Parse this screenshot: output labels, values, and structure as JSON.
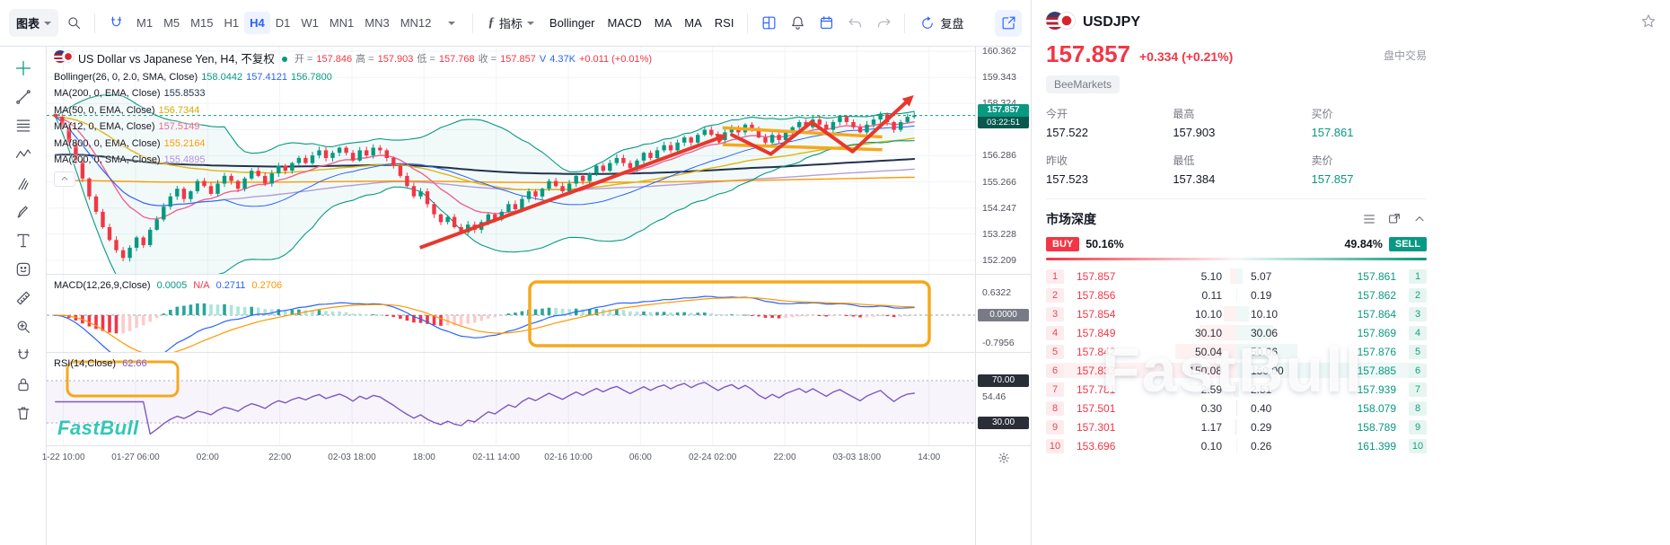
{
  "toolbar": {
    "chart_menu_label": "图表",
    "timeframes": [
      "M1",
      "M5",
      "M15",
      "H1",
      "H4",
      "D1",
      "W1",
      "MN1",
      "MN3",
      "MN12"
    ],
    "active_timeframe": "H4",
    "indicators_label": "指标",
    "quick_indicators": [
      "Bollinger",
      "MACD",
      "MA",
      "MA",
      "RSI"
    ],
    "replay_label": "复盘"
  },
  "chart": {
    "title": "US Dollar vs Japanese Yen, H4, 不复权",
    "ohlc": {
      "open_label": "开 =",
      "open": "157.846",
      "high_label": "高 =",
      "high": "157.903",
      "low_label": "低 =",
      "low": "157.768",
      "close_label": "收 =",
      "close": "157.857",
      "volume_label": "V",
      "volume": "4.37K",
      "change": "+0.011 (+0.01%)"
    },
    "legends": [
      {
        "name": "Bollinger(26, 0, 2.0, SMA, Close)",
        "v1": "158.0442",
        "v2": "157.4121",
        "v3": "156.7800"
      },
      {
        "name": "MA(200, 0, EMA, Close)",
        "v1": "155.8533"
      },
      {
        "name": "MA(50, 0, EMA, Close)",
        "v1": "156.7344"
      },
      {
        "name": "MA(12, 0, EMA, Close)",
        "v1": "157.5149"
      },
      {
        "name": "MA(800, 0, EMA, Close)",
        "v1": "155.2164"
      },
      {
        "name": "MA(200, 0, SMA, Close)",
        "v1": "155.4895"
      }
    ],
    "price_axis_labels": [
      "160.362",
      "159.343",
      "158.324",
      "156.286",
      "155.266",
      "154.247",
      "153.228",
      "152.209"
    ],
    "last_price": "157.857",
    "countdown": "03:22:51",
    "macd_legend": {
      "name": "MACD(12,26,9,Close)",
      "v1": "0.0005",
      "v2": "N/A",
      "v3": "0.2711",
      "v4": "0.2706"
    },
    "macd_axis": {
      "top": "0.6322",
      "zero": "0.0000",
      "bottom": "-0.7956"
    },
    "rsi_legend": {
      "name": "RSI(14,Close)",
      "value": "62.66"
    },
    "rsi_axis": {
      "top": "70.00",
      "mid": "54.46",
      "bottom": "30.00"
    },
    "time_axis": [
      "1-22 10:00",
      "01-27 06:00",
      "02:00",
      "22:00",
      "02-03 18:00",
      "18:00",
      "02-11 14:00",
      "02-16 10:00",
      "06:00",
      "02-24 02:00",
      "22:00",
      "03-03 18:00",
      "14:00"
    ],
    "watermark_small": "FastBull"
  },
  "chart_data": {
    "type": "candlestick",
    "symbol": "USDJPY",
    "interval": "H4",
    "price_domain": [
      151.68,
      160.54
    ],
    "macd_domain": [
      -1.063,
      1.138
    ],
    "rsi_domain": [
      7.9,
      96.4
    ],
    "overlays": [
      "BOLL(26,2)",
      "EMA12",
      "EMA50",
      "EMA200",
      "EMA800",
      "SMA200"
    ],
    "close": [
      157.8,
      157.4,
      156.8,
      156.1,
      155.4,
      154.7,
      154.1,
      153.5,
      153.0,
      152.6,
      152.3,
      152.7,
      153.1,
      152.8,
      153.4,
      153.8,
      154.3,
      154.7,
      155.0,
      154.6,
      154.9,
      155.3,
      155.1,
      154.8,
      155.2,
      155.5,
      155.3,
      155.0,
      155.4,
      155.7,
      155.5,
      155.2,
      155.6,
      155.9,
      155.7,
      156.0,
      156.2,
      156.0,
      156.3,
      156.5,
      156.2,
      156.4,
      156.6,
      156.4,
      156.1,
      156.5,
      156.3,
      156.6,
      156.5,
      156.2,
      155.9,
      155.5,
      155.1,
      154.7,
      154.9,
      154.4,
      154.0,
      153.7,
      153.9,
      153.5,
      153.3,
      153.6,
      153.4,
      153.7,
      154.0,
      153.8,
      154.1,
      154.4,
      154.2,
      154.6,
      154.9,
      154.7,
      155.0,
      155.3,
      155.1,
      154.9,
      155.2,
      155.5,
      155.3,
      155.6,
      155.9,
      155.7,
      156.0,
      156.2,
      156.0,
      155.8,
      156.1,
      156.4,
      156.2,
      156.5,
      156.7,
      156.5,
      156.8,
      157.0,
      156.8,
      157.1,
      157.3,
      157.1,
      156.9,
      157.2,
      157.4,
      157.2,
      157.5,
      157.3,
      157.0,
      156.8,
      157.1,
      156.9,
      157.2,
      157.4,
      157.6,
      157.4,
      157.7,
      157.5,
      157.3,
      157.6,
      157.8,
      157.6,
      157.4,
      157.2,
      157.5,
      157.7,
      157.9,
      157.6,
      157.3,
      157.6,
      157.8,
      157.857
    ]
  },
  "right_panel": {
    "symbol": "USDJPY",
    "price": "157.857",
    "change": "+0.334 (+0.21%)",
    "session_label": "盘中交易",
    "broker_tag": "BeeMarkets",
    "stats": {
      "open_label": "今开",
      "open": "157.522",
      "high_label": "最高",
      "high": "157.903",
      "bid_label": "买价",
      "bid": "157.861",
      "prev_close_label": "昨收",
      "prev_close": "157.523",
      "low_label": "最低",
      "low": "157.384",
      "ask_label": "卖价",
      "ask": "157.857"
    },
    "depth": {
      "title": "市场深度",
      "buy_label": "BUY",
      "buy_pct": "50.16%",
      "sell_pct": "49.84%",
      "sell_label": "SELL",
      "rows": [
        {
          "n": "1",
          "bid": "157.857",
          "bid_vol": "5.10",
          "ask_vol": "5.07",
          "ask": "157.861"
        },
        {
          "n": "2",
          "bid": "157.856",
          "bid_vol": "0.11",
          "ask_vol": "0.19",
          "ask": "157.862"
        },
        {
          "n": "3",
          "bid": "157.854",
          "bid_vol": "10.10",
          "ask_vol": "10.10",
          "ask": "157.864"
        },
        {
          "n": "4",
          "bid": "157.849",
          "bid_vol": "30.10",
          "ask_vol": "30.06",
          "ask": "157.869"
        },
        {
          "n": "5",
          "bid": "157.842",
          "bid_vol": "50.04",
          "ask_vol": "50.06",
          "ask": "157.876"
        },
        {
          "n": "6",
          "bid": "157.833",
          "bid_vol": "150.08",
          "ask_vol": "150.00",
          "ask": "157.885"
        },
        {
          "n": "7",
          "bid": "157.781",
          "bid_vol": "2.59",
          "ask_vol": "2.51",
          "ask": "157.939"
        },
        {
          "n": "8",
          "bid": "157.501",
          "bid_vol": "0.30",
          "ask_vol": "0.40",
          "ask": "158.079"
        },
        {
          "n": "9",
          "bid": "157.301",
          "bid_vol": "1.17",
          "ask_vol": "0.29",
          "ask": "158.789"
        },
        {
          "n": "10",
          "bid": "153.696",
          "bid_vol": "0.10",
          "ask_vol": "0.26",
          "ask": "161.399"
        }
      ]
    },
    "watermark": "FastBull"
  },
  "colors": {
    "up": "#089981",
    "down": "#f23645",
    "accent": "#2962ff",
    "boll_upper": "#089981",
    "boll_basis": "#2962ff",
    "boll_lower": "#089981",
    "ema200": "#22324d",
    "ema50": "#e0b50f",
    "ema12": "#f06292",
    "ema800": "#ff9800",
    "sma200": "#b39ddb",
    "macd_line": "#2962ff",
    "macd_signal": "#ff9800",
    "rsi_line": "#7e57c2",
    "annotation_red": "#e8372c",
    "annotation_yellow": "#f5a81d"
  }
}
